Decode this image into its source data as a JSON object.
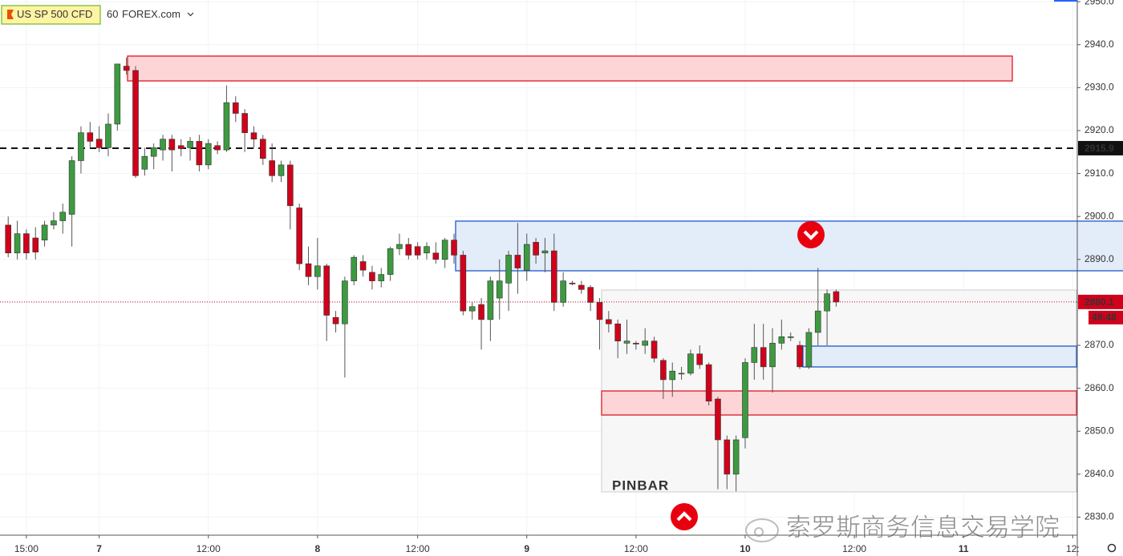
{
  "chart_data": {
    "type": "candlestick",
    "symbol": "US SP 500 CFD",
    "interval": "60",
    "source": "FOREX.com",
    "annotation": "PINBAR",
    "watermark": "索罗斯商务信息交易学院",
    "up_color": "#3d9a40",
    "down_color": "#d0021b",
    "grid": true,
    "xlim": [
      -0.9,
      117.5
    ],
    "xticks": [
      {
        "value": 2,
        "label": "15:00"
      },
      {
        "value": 10,
        "label": "7"
      },
      {
        "value": 22,
        "label": "12:00"
      },
      {
        "value": 34,
        "label": "8"
      },
      {
        "value": 45,
        "label": "12:00"
      },
      {
        "value": 57,
        "label": "9"
      },
      {
        "value": 69,
        "label": "12:00"
      },
      {
        "value": 81,
        "label": "10"
      },
      {
        "value": 93,
        "label": "12:00"
      },
      {
        "value": 105,
        "label": "11"
      },
      {
        "value": 117,
        "label": "12:"
      }
    ],
    "ylim": [
      2825.8,
      2950.4
    ],
    "yticks": [
      {
        "value": 2830,
        "label": "2830.0"
      },
      {
        "value": 2840,
        "label": "2840.0"
      },
      {
        "value": 2850,
        "label": "2850.0"
      },
      {
        "value": 2860,
        "label": "2860.0"
      },
      {
        "value": 2870,
        "label": "2870.0"
      },
      {
        "value": 2880,
        "label": "2880.0"
      },
      {
        "value": 2890,
        "label": "2890.0"
      },
      {
        "value": 2900,
        "label": "2900.0"
      },
      {
        "value": 2910,
        "label": "2910.0"
      },
      {
        "value": 2920,
        "label": "2920.0"
      },
      {
        "value": 2930,
        "label": "2930.0"
      },
      {
        "value": 2940,
        "label": "2940.0"
      },
      {
        "value": 2950,
        "label": "2950.0"
      }
    ],
    "level_line": 2915.9,
    "last_price": 2880.1,
    "countdown": "49:48",
    "open": [
      2898,
      2891.5,
      2896,
      2895,
      2894.5,
      2898,
      2899,
      2900.5,
      2913,
      2919.5,
      2918,
      2916,
      2921.5,
      2935,
      2934,
      2911,
      2914,
      2915.5,
      2918,
      2916.5,
      2916,
      2917.5,
      2912,
      2916.5,
      2915.5,
      2926.5,
      2924,
      2919.5,
      2918,
      2913,
      2909.5,
      2912,
      2902,
      2889,
      2886,
      2888.5,
      2876.5,
      2875,
      2885,
      2889.5,
      2887,
      2885,
      2886.5,
      2892.5,
      2893.5,
      2893,
      2891.5,
      2891.5,
      2890,
      2894.5,
      2891,
      2878,
      2879.5,
      2876,
      2881,
      2884.5,
      2891,
      2887.5,
      2894,
      2891.5,
      2892,
      2880,
      2884.5,
      2884,
      2883.5,
      2880,
      2876,
      2875,
      2870.5,
      2870.5,
      2870,
      2871,
      2866.5,
      2862,
      2863.5,
      2863.5,
      2868,
      2865.5,
      2857.5,
      2848,
      2840,
      2848.5,
      2866,
      2869.5,
      2865,
      2870.5,
      2872,
      2870,
      2865,
      2873,
      2878,
      2882.5
    ],
    "high": [
      2900,
      2899,
      2897,
      2897.5,
      2899,
      2901,
      2903,
      2914,
      2921,
      2922,
      2921,
      2924,
      2935.5,
      2937,
      2935,
      2916,
      2917,
      2919,
      2919,
      2918,
      2918.5,
      2919,
      2918,
      2917.5,
      2930.5,
      2928,
      2925,
      2921,
      2919,
      2917,
      2913,
      2913,
      2903,
      2893,
      2895,
      2889,
      2878,
      2886,
      2891,
      2891,
      2888.5,
      2888,
      2893,
      2896,
      2895,
      2894,
      2894,
      2894,
      2895,
      2896,
      2892,
      2880,
      2881,
      2886,
      2890,
      2892,
      2898.5,
      2896,
      2895,
      2895,
      2896,
      2887,
      2885,
      2885,
      2884,
      2881,
      2878,
      2876,
      2876,
      2871,
      2874,
      2872,
      2867,
      2866,
      2865,
      2869,
      2870,
      2866,
      2858,
      2849,
      2849,
      2867,
      2875,
      2875,
      2874,
      2876,
      2873,
      2871,
      2874,
      2888,
      2883,
      2883
    ],
    "low": [
      2890.5,
      2890,
      2890,
      2890,
      2893,
      2897,
      2896,
      2893,
      2910,
      2916,
      2915,
      2914,
      2920,
      2933,
      2909,
      2909.5,
      2911,
      2913,
      2910.5,
      2914,
      2913,
      2910.5,
      2911,
      2914.5,
      2915,
      2922,
      2915,
      2916,
      2912,
      2908,
      2908,
      2897,
      2887.5,
      2884,
      2883,
      2871,
      2873,
      2862.5,
      2884,
      2886,
      2883,
      2883.5,
      2885,
      2891,
      2890,
      2890,
      2890,
      2889,
      2888,
      2889,
      2877,
      2876,
      2869,
      2871,
      2876,
      2878,
      2882,
      2885,
      2889,
      2887,
      2878,
      2879,
      2884,
      2882,
      2878,
      2869,
      2873,
      2867,
      2868,
      2869,
      2868,
      2866,
      2857.5,
      2858,
      2862,
      2863,
      2864.5,
      2856,
      2836.5,
      2836.5,
      2836,
      2846,
      2862,
      2862,
      2859,
      2869,
      2871,
      2864.5,
      2864.5,
      2870,
      2870,
      2879
    ],
    "close": [
      2891.5,
      2896,
      2891.5,
      2891.7,
      2898,
      2899,
      2901,
      2913,
      2919.5,
      2917.5,
      2916,
      2921.5,
      2935.5,
      2934,
      2909.5,
      2914,
      2916,
      2918,
      2915.5,
      2915.8,
      2917.5,
      2912,
      2917,
      2915.5,
      2926.5,
      2924,
      2919.5,
      2918,
      2913.5,
      2909.5,
      2912,
      2902.5,
      2889,
      2886,
      2888.5,
      2877,
      2875,
      2885,
      2890.5,
      2887.5,
      2885,
      2886.5,
      2892.5,
      2893.5,
      2891,
      2891,
      2893,
      2890,
      2894.5,
      2891,
      2878,
      2879,
      2876,
      2885,
      2885,
      2891,
      2888,
      2893.5,
      2891,
      2892,
      2880,
      2885,
      2884.3,
      2883,
      2880,
      2876,
      2875,
      2871,
      2871,
      2870.3,
      2871,
      2867,
      2862,
      2864,
      2863.5,
      2868,
      2865.5,
      2857,
      2848,
      2840,
      2848,
      2866,
      2869.5,
      2865,
      2870.5,
      2872,
      2872,
      2865,
      2873,
      2878,
      2882,
      2880.1
    ]
  }
}
